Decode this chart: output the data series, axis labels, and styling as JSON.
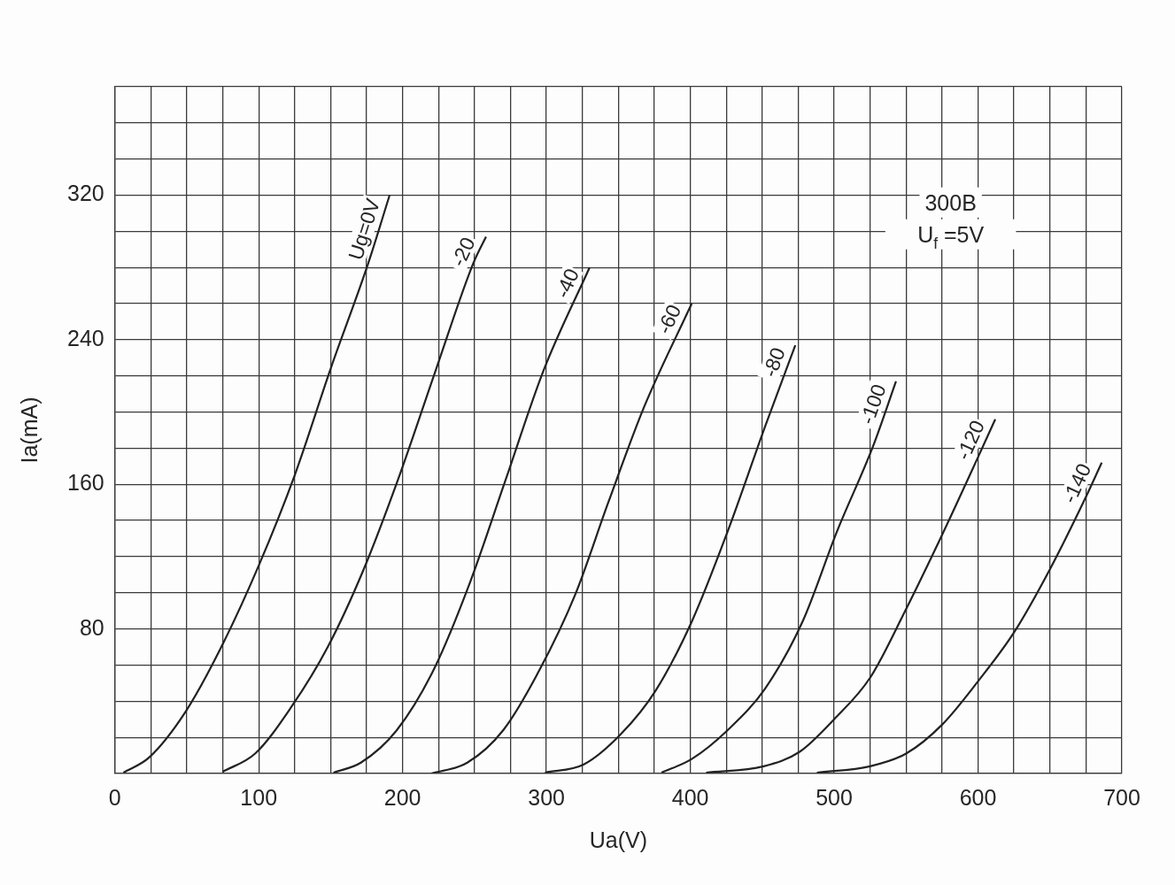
{
  "chart_data": {
    "type": "line",
    "xlabel": "Ua(V)",
    "ylabel": "Ia(mA)",
    "annotations": [
      "300B",
      "U$_{f}$ =5V"
    ],
    "xlim": [
      0,
      700
    ],
    "ylim": [
      0,
      380
    ],
    "xticks": [
      0,
      {
        "value": 25,
        "label": null
      },
      {
        "value": 50,
        "label": null
      },
      {
        "value": 75,
        "label": null
      },
      100,
      {
        "value": 125,
        "label": null
      },
      {
        "value": 150,
        "label": null
      },
      {
        "value": 175,
        "label": null
      },
      200,
      {
        "value": 225,
        "label": null
      },
      {
        "value": 250,
        "label": null
      },
      {
        "value": 275,
        "label": null
      },
      300,
      {
        "value": 325,
        "label": null
      },
      {
        "value": 350,
        "label": null
      },
      {
        "value": 375,
        "label": null
      },
      400,
      {
        "value": 425,
        "label": null
      },
      {
        "value": 450,
        "label": null
      },
      {
        "value": 475,
        "label": null
      },
      500,
      {
        "value": 525,
        "label": null
      },
      {
        "value": 550,
        "label": null
      },
      {
        "value": 575,
        "label": null
      },
      600,
      {
        "value": 625,
        "label": null
      },
      {
        "value": 650,
        "label": null
      },
      {
        "value": 675,
        "label": null
      },
      700
    ],
    "yticks": [
      {
        "value": 0,
        "label": null
      },
      {
        "value": 20,
        "label": null
      },
      {
        "value": 40,
        "label": null
      },
      {
        "value": 60,
        "label": null
      },
      80,
      {
        "value": 100,
        "label": null
      },
      {
        "value": 120,
        "label": null
      },
      {
        "value": 140,
        "label": null
      },
      160,
      {
        "value": 180,
        "label": null
      },
      {
        "value": 200,
        "label": null
      },
      {
        "value": 220,
        "label": null
      },
      240,
      {
        "value": 260,
        "label": null
      },
      {
        "value": 280,
        "label": null
      },
      {
        "value": 300,
        "label": null
      },
      320,
      {
        "value": 340,
        "label": null
      },
      {
        "value": 360,
        "label": null
      },
      {
        "value": 380,
        "label": null
      }
    ],
    "grid": true,
    "legend": false,
    "marker": "none",
    "line_style": "solid",
    "series": [
      {
        "name": "Ug=0V",
        "color": "#222222",
        "x": [
          6,
          24,
          49,
          74,
          100,
          125,
          150,
          176,
          191
        ],
        "values": [
          0.5,
          9,
          34,
          70,
          115,
          165,
          224,
          282,
          320
        ]
      },
      {
        "name": "-20",
        "color": "#222222",
        "x": [
          75,
          97.5,
          122,
          148,
          173,
          197,
          223,
          249,
          258
        ],
        "values": [
          1,
          11,
          36,
          70,
          113,
          163,
          223,
          282,
          297
        ]
      },
      {
        "name": "-40",
        "color": "#222222",
        "x": [
          152,
          171,
          196,
          222,
          247,
          271,
          298,
          330
        ],
        "values": [
          0.5,
          6,
          24,
          58,
          106,
          161,
          223,
          280
        ]
      },
      {
        "name": "-60",
        "color": "#222222",
        "x": [
          220,
          245,
          270,
          295,
          320,
          343,
          368,
          401
        ],
        "values": [
          0,
          6,
          24,
          57,
          99,
          150,
          203,
          260
        ]
      },
      {
        "name": "-80",
        "color": "#222222",
        "x": [
          299,
          326,
          352,
          376,
          401,
          426,
          452,
          473
        ],
        "values": [
          0.5,
          5,
          22,
          46,
          84,
          134,
          192,
          237
        ]
      },
      {
        "name": "-100",
        "color": "#222222",
        "x": [
          380,
          401,
          426,
          452,
          478,
          502,
          527,
          543
        ],
        "values": [
          0.5,
          8,
          24,
          47,
          84,
          134,
          181,
          217
        ]
      },
      {
        "name": "-120",
        "color": "#222222",
        "x": [
          411,
          451,
          476,
          500,
          525,
          550,
          575,
          600,
          612
        ],
        "values": [
          0.5,
          4,
          12,
          30,
          53,
          91,
          132,
          175,
          196
        ]
      },
      {
        "name": "-140",
        "color": "#222222",
        "x": [
          488,
          525,
          550,
          575,
          600,
          625,
          650,
          675,
          686
        ],
        "values": [
          0.5,
          4,
          11,
          27,
          51,
          78,
          113,
          153,
          172
        ]
      }
    ]
  }
}
